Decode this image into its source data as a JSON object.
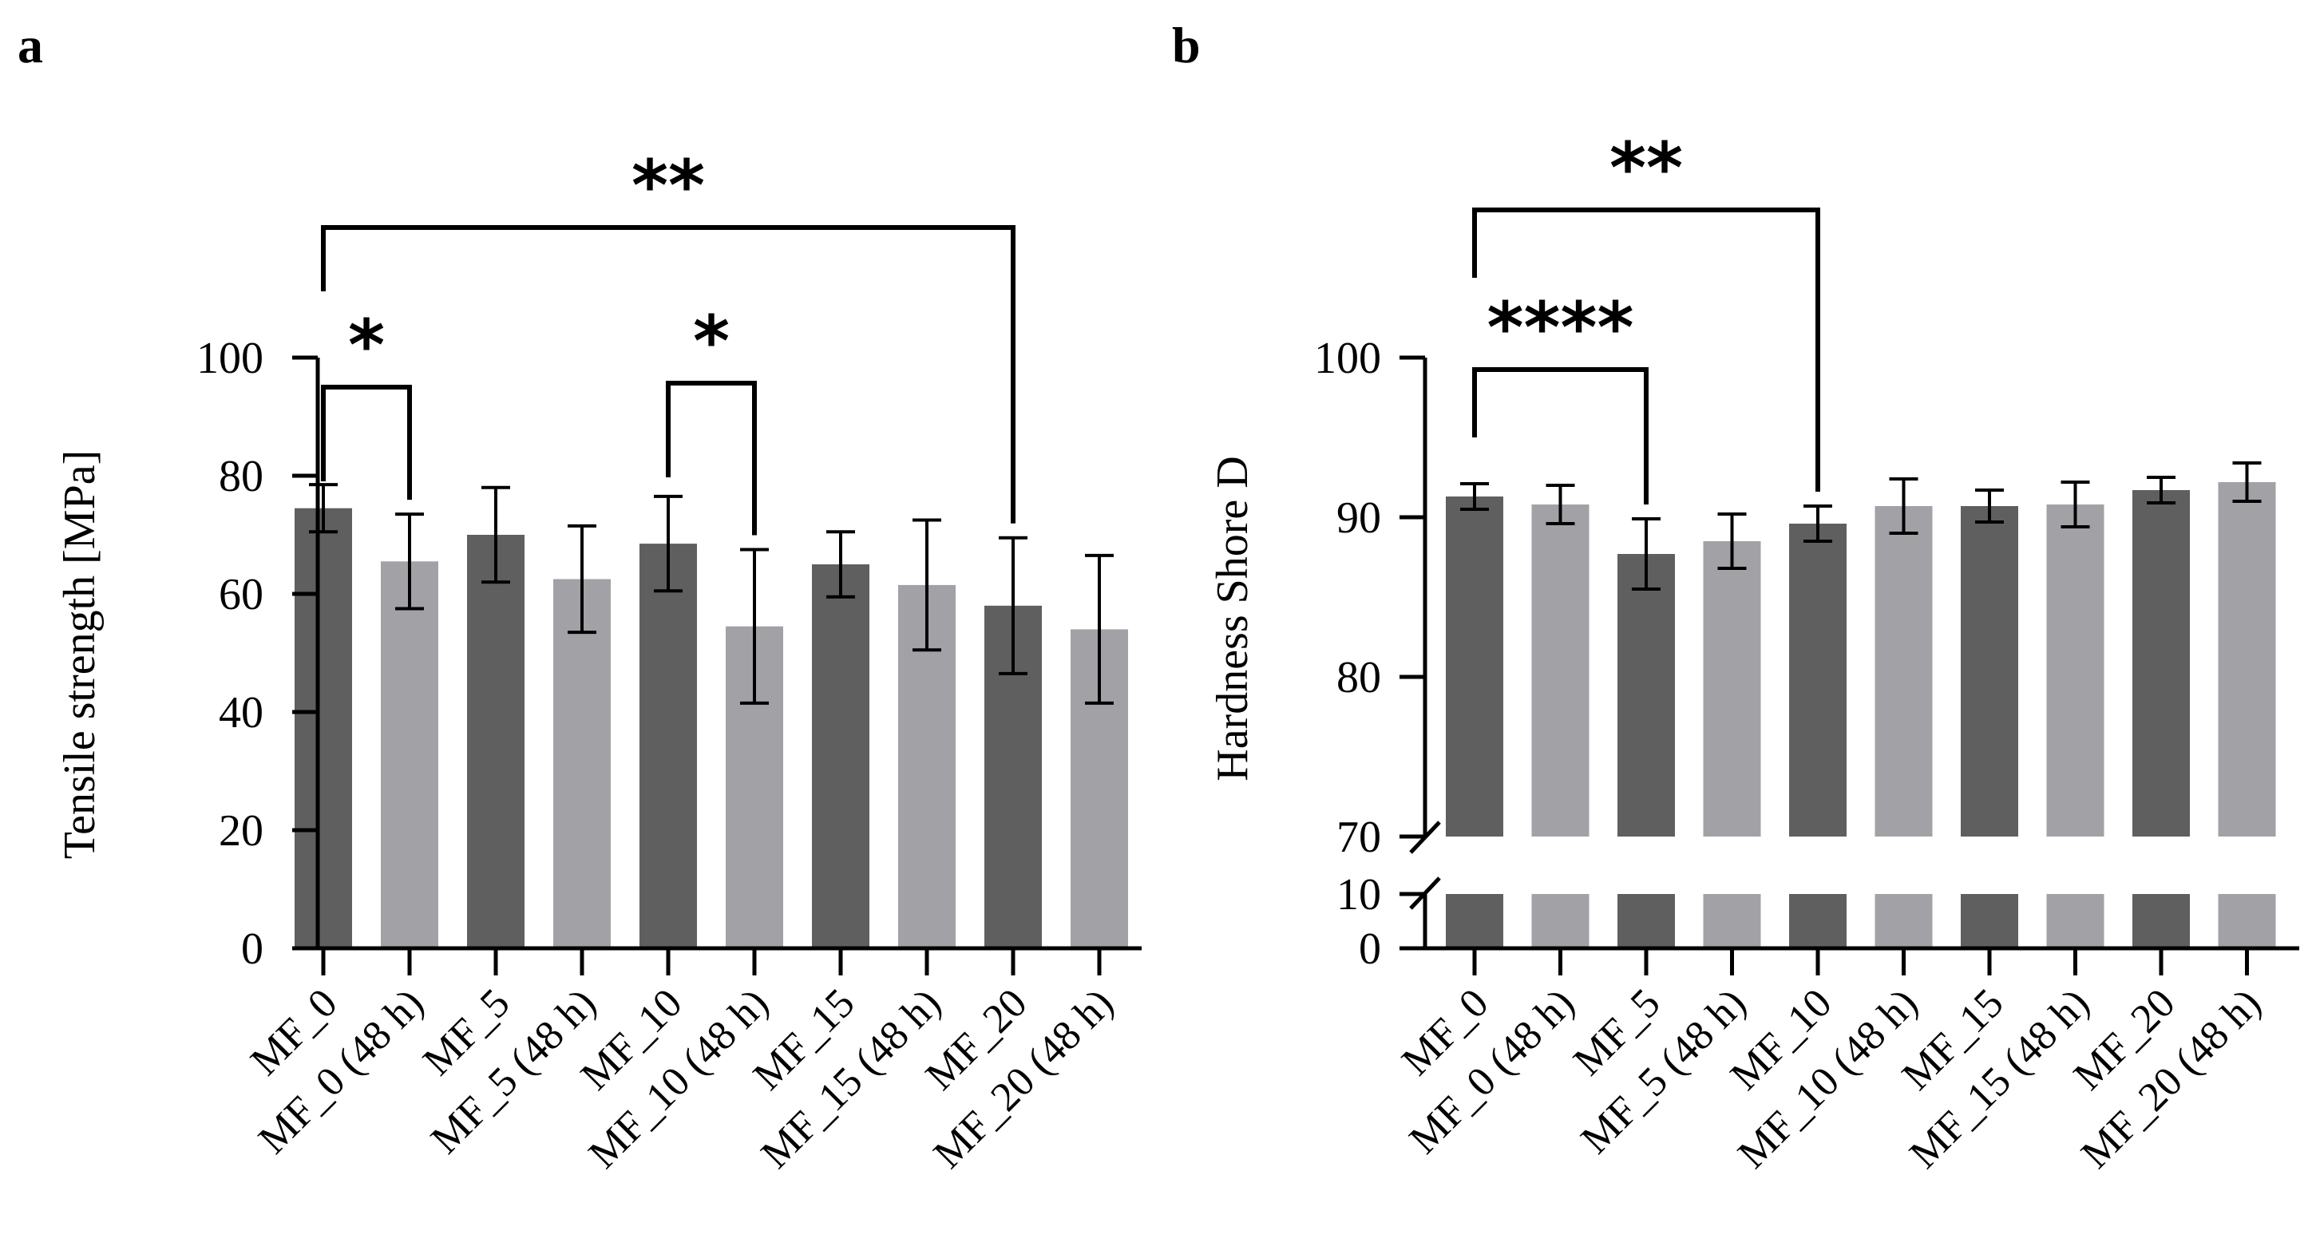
{
  "figure": {
    "panels": [
      "a",
      "b"
    ]
  },
  "colors": {
    "dark": "#5f5f5f",
    "light": "#a2a2a6",
    "axis": "#000000"
  },
  "chart_data": [
    {
      "id": "a",
      "type": "bar",
      "title": "",
      "xlabel": "",
      "ylabel": "Tensile strength [MPa]",
      "ylim": [
        0,
        100
      ],
      "yticks": [
        "0",
        "20",
        "40",
        "60",
        "80",
        "100"
      ],
      "categories": [
        "MF_0",
        "MF_0 (48 h)",
        "MF_5",
        "MF_5 (48 h)",
        "MF_10",
        "MF_10 (48 h)",
        "MF_15",
        "MF_15 (48 h)",
        "MF_20",
        "MF_20 (48 h)"
      ],
      "values": [
        74.5,
        65.5,
        70.0,
        62.5,
        68.5,
        54.5,
        65.0,
        61.5,
        58.0,
        54.0
      ],
      "errors": [
        4.0,
        8.0,
        8.0,
        9.0,
        8.0,
        13.0,
        5.5,
        11.0,
        11.5,
        12.5
      ],
      "significance": [
        {
          "from": 0,
          "to": 1,
          "label": "*"
        },
        {
          "from": 4,
          "to": 5,
          "label": "*"
        },
        {
          "from": 0,
          "to": 8,
          "label": "**"
        }
      ]
    },
    {
      "id": "b",
      "type": "bar",
      "title": "",
      "xlabel": "",
      "ylabel": "Hardness Shore D",
      "ylim": [
        0,
        100
      ],
      "axis_break": [
        10,
        70
      ],
      "yticks": [
        "0",
        "10",
        "70",
        "80",
        "90",
        "100"
      ],
      "categories": [
        "MF_0",
        "MF_0 (48 h)",
        "MF_5",
        "MF_5 (48 h)",
        "MF_10",
        "MF_10 (48 h)",
        "MF_15",
        "MF_15 (48 h)",
        "MF_20",
        "MF_20 (48 h)"
      ],
      "values": [
        91.3,
        90.8,
        87.7,
        88.5,
        89.6,
        90.7,
        90.7,
        90.8,
        91.7,
        92.2
      ],
      "errors": [
        0.8,
        1.2,
        2.2,
        1.7,
        1.1,
        1.7,
        1.0,
        1.4,
        0.8,
        1.2
      ],
      "significance": [
        {
          "from": 0,
          "to": 2,
          "label": "****"
        },
        {
          "from": 0,
          "to": 4,
          "label": "**"
        }
      ]
    }
  ]
}
